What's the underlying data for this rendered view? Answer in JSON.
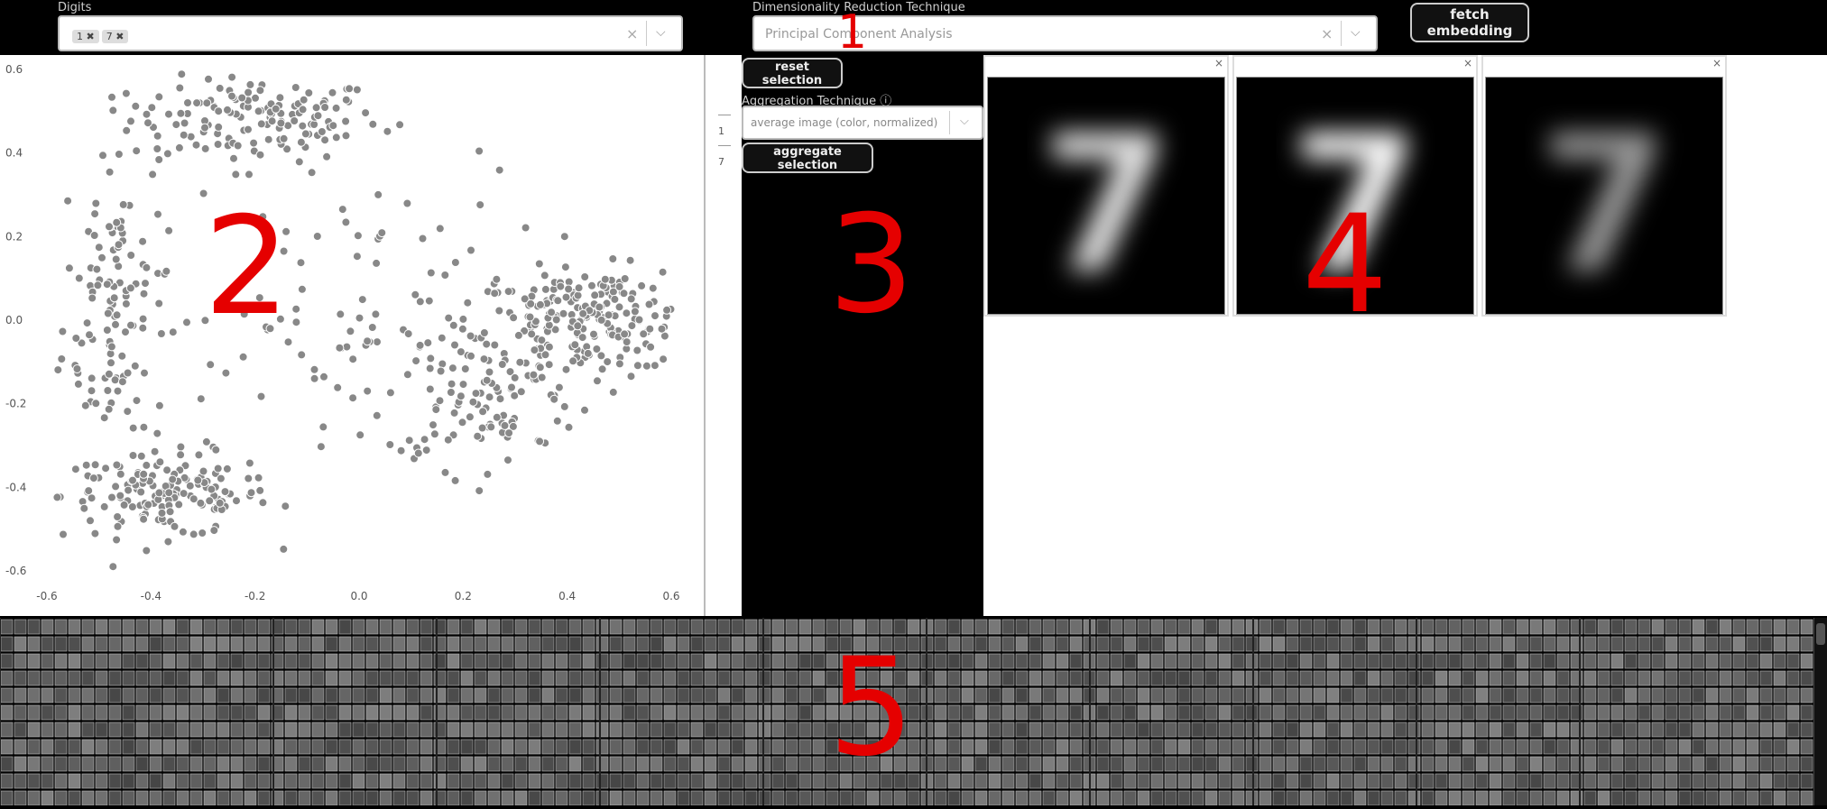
{
  "controls": {
    "digits_label": "Digits",
    "digits_chips": [
      "1 ✖",
      "7 ✖"
    ],
    "digits_clear": "×",
    "digits_chevron": "⌵",
    "dr_label": "Dimensionality Reduction Technique",
    "dr_value": "Principal Component Analysis",
    "dr_clear": "×",
    "dr_chevron": "⌵",
    "fetch_button": "fetch embedding"
  },
  "middle": {
    "reset_button": "reset selection",
    "agg_label": "Aggregation Technique ⓘ",
    "agg_value": "average image (color, normalized)",
    "agg_chevron": "⌵",
    "aggregate_button": "aggregate selection",
    "side_labels": [
      "1",
      "7"
    ]
  },
  "aggregates": {
    "close_glyph": "×",
    "images": [
      {
        "label": "7",
        "intensity": 0.9
      },
      {
        "label": "7",
        "intensity": 1.0
      },
      {
        "label": "7",
        "intensity": 0.6
      }
    ]
  },
  "annotations": [
    "1",
    "2",
    "3",
    "4",
    "5"
  ],
  "chart_data": {
    "type": "scatter",
    "title": "",
    "xlabel": "",
    "ylabel": "",
    "xlim": [
      -0.6,
      0.6
    ],
    "ylim": [
      -0.6,
      0.6
    ],
    "xticks": [
      "-0.6",
      "-0.4",
      "-0.2",
      "0.0",
      "0.2",
      "0.4",
      "0.6"
    ],
    "yticks": [
      "0.6",
      "0.4",
      "0.2",
      "0.0",
      "-0.2",
      "-0.4",
      "-0.6"
    ],
    "clusters": [
      {
        "name": "upper-arc",
        "cx": -0.2,
        "cy": 0.48,
        "sx": 0.12,
        "sy": 0.05,
        "n": 140
      },
      {
        "name": "left-arc",
        "cx": -0.47,
        "cy": 0.05,
        "sx": 0.05,
        "sy": 0.2,
        "n": 120
      },
      {
        "name": "lower-arc",
        "cx": -0.37,
        "cy": -0.42,
        "sx": 0.1,
        "sy": 0.05,
        "n": 150
      },
      {
        "name": "right-cluster",
        "cx": 0.45,
        "cy": 0.0,
        "sx": 0.12,
        "sy": 0.06,
        "n": 240
      },
      {
        "name": "middle-band",
        "cx": 0.25,
        "cy": -0.18,
        "sx": 0.1,
        "sy": 0.08,
        "n": 90
      },
      {
        "name": "scatter-center",
        "cx": -0.05,
        "cy": 0.0,
        "sx": 0.2,
        "sy": 0.2,
        "n": 110
      }
    ]
  },
  "grid_label": "digit thumbnails grid"
}
